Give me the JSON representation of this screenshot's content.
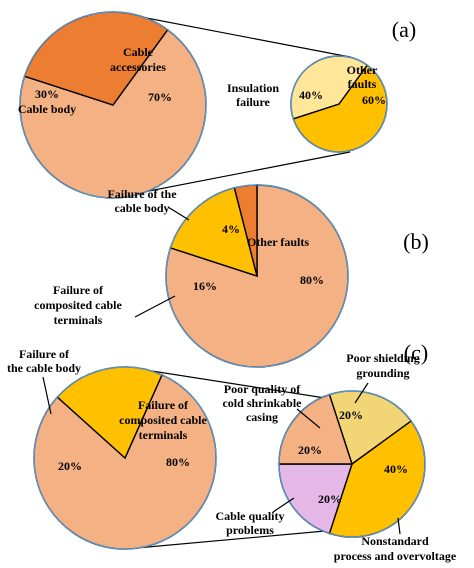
{
  "colors": {
    "salmon": "#f4b183",
    "dark_orange": "#ed7d31",
    "gold": "#ffc000",
    "light_yellow": "#ffe699",
    "khaki": "#f2d675",
    "pink": "#e6b8e8",
    "edge": "#5b9bd5"
  },
  "chart_data": [
    {
      "type": "pie",
      "panel": "(a)",
      "slices": [
        {
          "label_lines": [
            "Cable",
            "accessories"
          ],
          "value": 70,
          "value_text": "70%",
          "color": "#f4b183"
        },
        {
          "label_lines": [
            "Cable body"
          ],
          "value": 30,
          "value_text": "30%",
          "color": "#ed7d31"
        }
      ],
      "breakdown_of": "Cable accessories",
      "sub_slices": [
        {
          "label_lines": [
            "Other",
            "faults"
          ],
          "value": 60,
          "value_text": "60%",
          "color": "#ffc000"
        },
        {
          "label_lines": [
            "Insulation",
            "failure"
          ],
          "value": 40,
          "value_text": "40%",
          "color": "#ffe699"
        }
      ]
    },
    {
      "type": "pie",
      "panel": "(b)",
      "slices": [
        {
          "label_lines": [
            "Other faults"
          ],
          "value": 80,
          "value_text": "80%",
          "color": "#f4b183"
        },
        {
          "label_lines": [
            "Failure of",
            "composited cable",
            "terminals"
          ],
          "value": 16,
          "value_text": "16%",
          "color": "#ffc000"
        },
        {
          "label_lines": [
            "Failure of the",
            "cable body"
          ],
          "value": 4,
          "value_text": "4%",
          "color": "#ed7d31"
        }
      ]
    },
    {
      "type": "pie",
      "panel": "(c)",
      "slices": [
        {
          "label_lines": [
            "Failure of",
            "composited cable",
            "terminals"
          ],
          "value": 80,
          "value_text": "80%",
          "color": "#f4b183"
        },
        {
          "label_lines": [
            "Failure of",
            "the cable body"
          ],
          "value": 20,
          "value_text": "20%",
          "color": "#ffc000"
        }
      ],
      "breakdown_of": "Failure of composited cable terminals",
      "sub_slices": [
        {
          "label_lines": [
            "Poor shielding",
            "grounding"
          ],
          "value": 20,
          "value_text": "20%",
          "color": "#f2d675"
        },
        {
          "label_lines": [
            "Nonstandard",
            "process and overvoltage"
          ],
          "value": 40,
          "value_text": "40%",
          "color": "#ffc000"
        },
        {
          "label_lines": [
            "Cable quality",
            "problems"
          ],
          "value": 20,
          "value_text": "20%",
          "color": "#e6b8e8"
        },
        {
          "label_lines": [
            "Poor quality of",
            "cold shrinkable",
            "casing"
          ],
          "value": 20,
          "value_text": "20%",
          "color": "#f4b183"
        }
      ]
    }
  ]
}
